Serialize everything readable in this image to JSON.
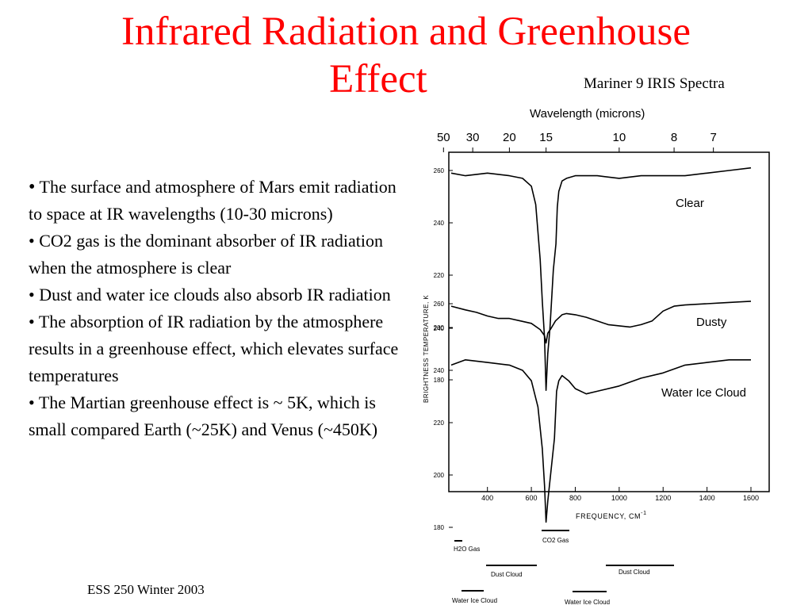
{
  "slide": {
    "title_line1": "Infrared Radiation and Greenhouse",
    "title_line2": "Effect",
    "chart_caption": "Mariner 9 IRIS Spectra",
    "footer": "ESS 250 Winter 2003",
    "bullets": [
      "The surface and atmosphere of Mars emit radiation to space at IR wavelengths (10-30 microns)",
      "CO2 gas is the dominant absorber of IR radiation when the atmosphere is clear",
      "Dust and water ice clouds also absorb IR radiation",
      "The absorption of IR radiation by the atmosphere results in a greenhouse effect, which elevates surface temperatures",
      "The Martian greenhouse effect is ~ 5K, which is small compared Earth (~25K) and Venus (~450K)"
    ],
    "bullet_symbol": "•"
  },
  "chart_data": {
    "type": "line",
    "top_axis": {
      "label": "Wavelength (microns)",
      "ticks": [
        "50",
        "30",
        "20",
        "15",
        "10",
        "8",
        "7"
      ],
      "tick_frequencies": [
        200,
        333,
        500,
        667,
        1000,
        1250,
        1429
      ]
    },
    "xlabel": "FREQUENCY, CM",
    "xlabel_exponent": "-1",
    "xticks": [
      400,
      600,
      800,
      1000,
      1200,
      1400,
      1600
    ],
    "xlim": [
      200,
      1650
    ],
    "ylabel": "BRIGHTNESS TEMPERATURE, K",
    "panels": [
      {
        "name": "Clear",
        "yticks": [
          260,
          240,
          220,
          200,
          180
        ],
        "series": {
          "x": [
            235,
            300,
            400,
            500,
            560,
            600,
            620,
            640,
            650,
            660,
            667,
            675,
            685,
            700,
            712,
            718,
            725,
            740,
            760,
            800,
            900,
            1000,
            1100,
            1200,
            1300,
            1400,
            1500,
            1600
          ],
          "y": [
            259,
            258,
            259,
            258,
            257,
            254,
            247,
            226,
            210,
            196,
            176,
            190,
            200,
            222,
            232,
            246,
            252,
            256,
            257,
            258,
            258,
            257,
            258,
            258,
            258,
            259,
            260,
            261
          ]
        }
      },
      {
        "name": "Dusty",
        "yticks": [
          260,
          240
        ],
        "series": {
          "x": [
            235,
            300,
            350,
            400,
            450,
            500,
            550,
            600,
            640,
            660,
            667,
            675,
            690,
            710,
            740,
            760,
            800,
            850,
            900,
            950,
            1000,
            1050,
            1100,
            1150,
            1200,
            1250,
            1300,
            1400,
            1500,
            1600
          ],
          "y": [
            258,
            255,
            253,
            250,
            248,
            248,
            246,
            244,
            239,
            234,
            228,
            236,
            240,
            246,
            251,
            252,
            251,
            249,
            246,
            243,
            242,
            241,
            243,
            246,
            254,
            258,
            259,
            260,
            261,
            262
          ]
        }
      },
      {
        "name": "Water Ice Cloud",
        "yticks": [
          240,
          220,
          200,
          180
        ],
        "series": {
          "x": [
            235,
            300,
            400,
            500,
            560,
            600,
            630,
            650,
            660,
            667,
            675,
            690,
            705,
            715,
            725,
            740,
            770,
            800,
            850,
            900,
            1000,
            1100,
            1200,
            1300,
            1400,
            1500,
            1600
          ],
          "y": [
            242,
            244,
            243,
            242,
            240,
            236,
            226,
            210,
            196,
            182,
            190,
            202,
            214,
            232,
            236,
            238,
            236,
            233,
            231,
            232,
            234,
            237,
            239,
            242,
            243,
            244,
            244
          ]
        }
      }
    ]
  },
  "legend_bars": {
    "h2o_gas": "H2O Gas",
    "co2_gas": "CO2 Gas",
    "dust_cloud_1": "Dust Cloud",
    "dust_cloud_2": "Dust Cloud",
    "water_ice_cloud_1": "Water Ice Cloud",
    "water_ice_cloud_2": "Water Ice Cloud"
  }
}
